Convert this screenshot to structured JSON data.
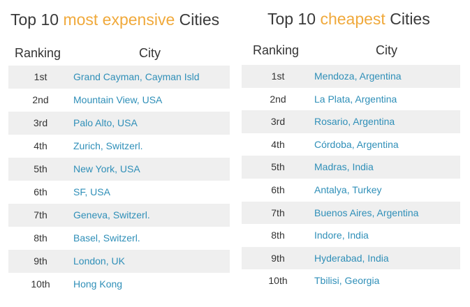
{
  "expensive": {
    "title_prefix": "Top 10 ",
    "title_accent": "most expensive",
    "title_suffix": " Cities",
    "col_ranking": "Ranking",
    "col_city": "City",
    "rows": [
      {
        "rank": "1st",
        "city": "Grand Cayman, Cayman Isld"
      },
      {
        "rank": "2nd",
        "city": "Mountain View, USA"
      },
      {
        "rank": "3rd",
        "city": "Palo Alto, USA"
      },
      {
        "rank": "4th",
        "city": "Zurich, Switzerl."
      },
      {
        "rank": "5th",
        "city": "New York, USA"
      },
      {
        "rank": "6th",
        "city": "SF, USA"
      },
      {
        "rank": "7th",
        "city": "Geneva, Switzerl."
      },
      {
        "rank": "8th",
        "city": "Basel, Switzerl."
      },
      {
        "rank": "9th",
        "city": "London, UK"
      },
      {
        "rank": "10th",
        "city": "Hong Kong"
      }
    ]
  },
  "cheapest": {
    "title_prefix": "Top 10 ",
    "title_accent": "cheapest",
    "title_suffix": " Cities",
    "col_ranking": "Ranking",
    "col_city": "City",
    "rows": [
      {
        "rank": "1st",
        "city": "Mendoza, Argentina"
      },
      {
        "rank": "2nd",
        "city": "La Plata, Argentina"
      },
      {
        "rank": "3rd",
        "city": "Rosario, Argentina"
      },
      {
        "rank": "4th",
        "city": "Córdoba, Argentina"
      },
      {
        "rank": "5th",
        "city": "Madras, India"
      },
      {
        "rank": "6th",
        "city": "Antalya, Turkey"
      },
      {
        "rank": "7th",
        "city": "Buenos Aires, Argentina"
      },
      {
        "rank": "8th",
        "city": "Indore, India"
      },
      {
        "rank": "9th",
        "city": "Hyderabad, India"
      },
      {
        "rank": "10th",
        "city": "Tbilisi, Georgia"
      }
    ]
  },
  "colors": {
    "accent": "#f0a93b",
    "link": "#2f8fb8",
    "row_shade": "#efefef",
    "text": "#333333"
  }
}
